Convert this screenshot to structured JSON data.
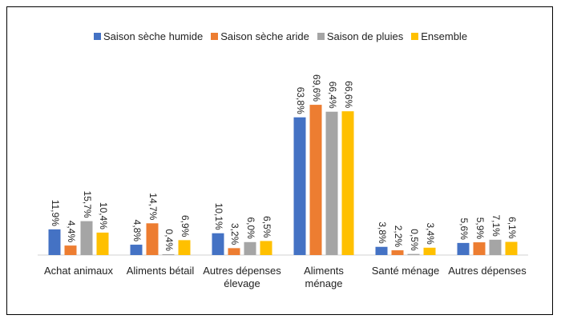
{
  "chart_data": {
    "type": "bar",
    "categories": [
      "Achat animaux",
      "Aliments bétail",
      "Autres dépenses élevage",
      "Aliments ménage",
      "Santé ménage",
      "Autres dépenses"
    ],
    "series": [
      {
        "name": "Saison sèche humide",
        "color": "#4472c4",
        "values": [
          11.9,
          4.8,
          10.1,
          63.8,
          3.8,
          5.6
        ],
        "value_labels": [
          "11,9%",
          "4,8%",
          "10,1%",
          "63,8%",
          "3,8%",
          "5,6%"
        ]
      },
      {
        "name": "Saison sèche aride",
        "color": "#ed7d31",
        "values": [
          4.4,
          14.7,
          3.2,
          69.6,
          2.2,
          5.9
        ],
        "value_labels": [
          "4,4%",
          "14,7%",
          "3,2%",
          "69,6%",
          "2,2%",
          "5,9%"
        ]
      },
      {
        "name": "Saison de pluies",
        "color": "#a5a5a5",
        "values": [
          15.7,
          0.4,
          6.0,
          66.4,
          0.5,
          7.1
        ],
        "value_labels": [
          "15,7%",
          "0,4%",
          "6,0%",
          "66,4%",
          "0,5%",
          "7,1%"
        ]
      },
      {
        "name": "Ensemble",
        "color": "#ffc000",
        "values": [
          10.4,
          6.9,
          6.5,
          66.6,
          3.4,
          6.1
        ],
        "value_labels": [
          "10,4%",
          "6,9%",
          "6,5%",
          "66,6%",
          "3,4%",
          "6,1%"
        ]
      }
    ],
    "legend": "top"
  }
}
